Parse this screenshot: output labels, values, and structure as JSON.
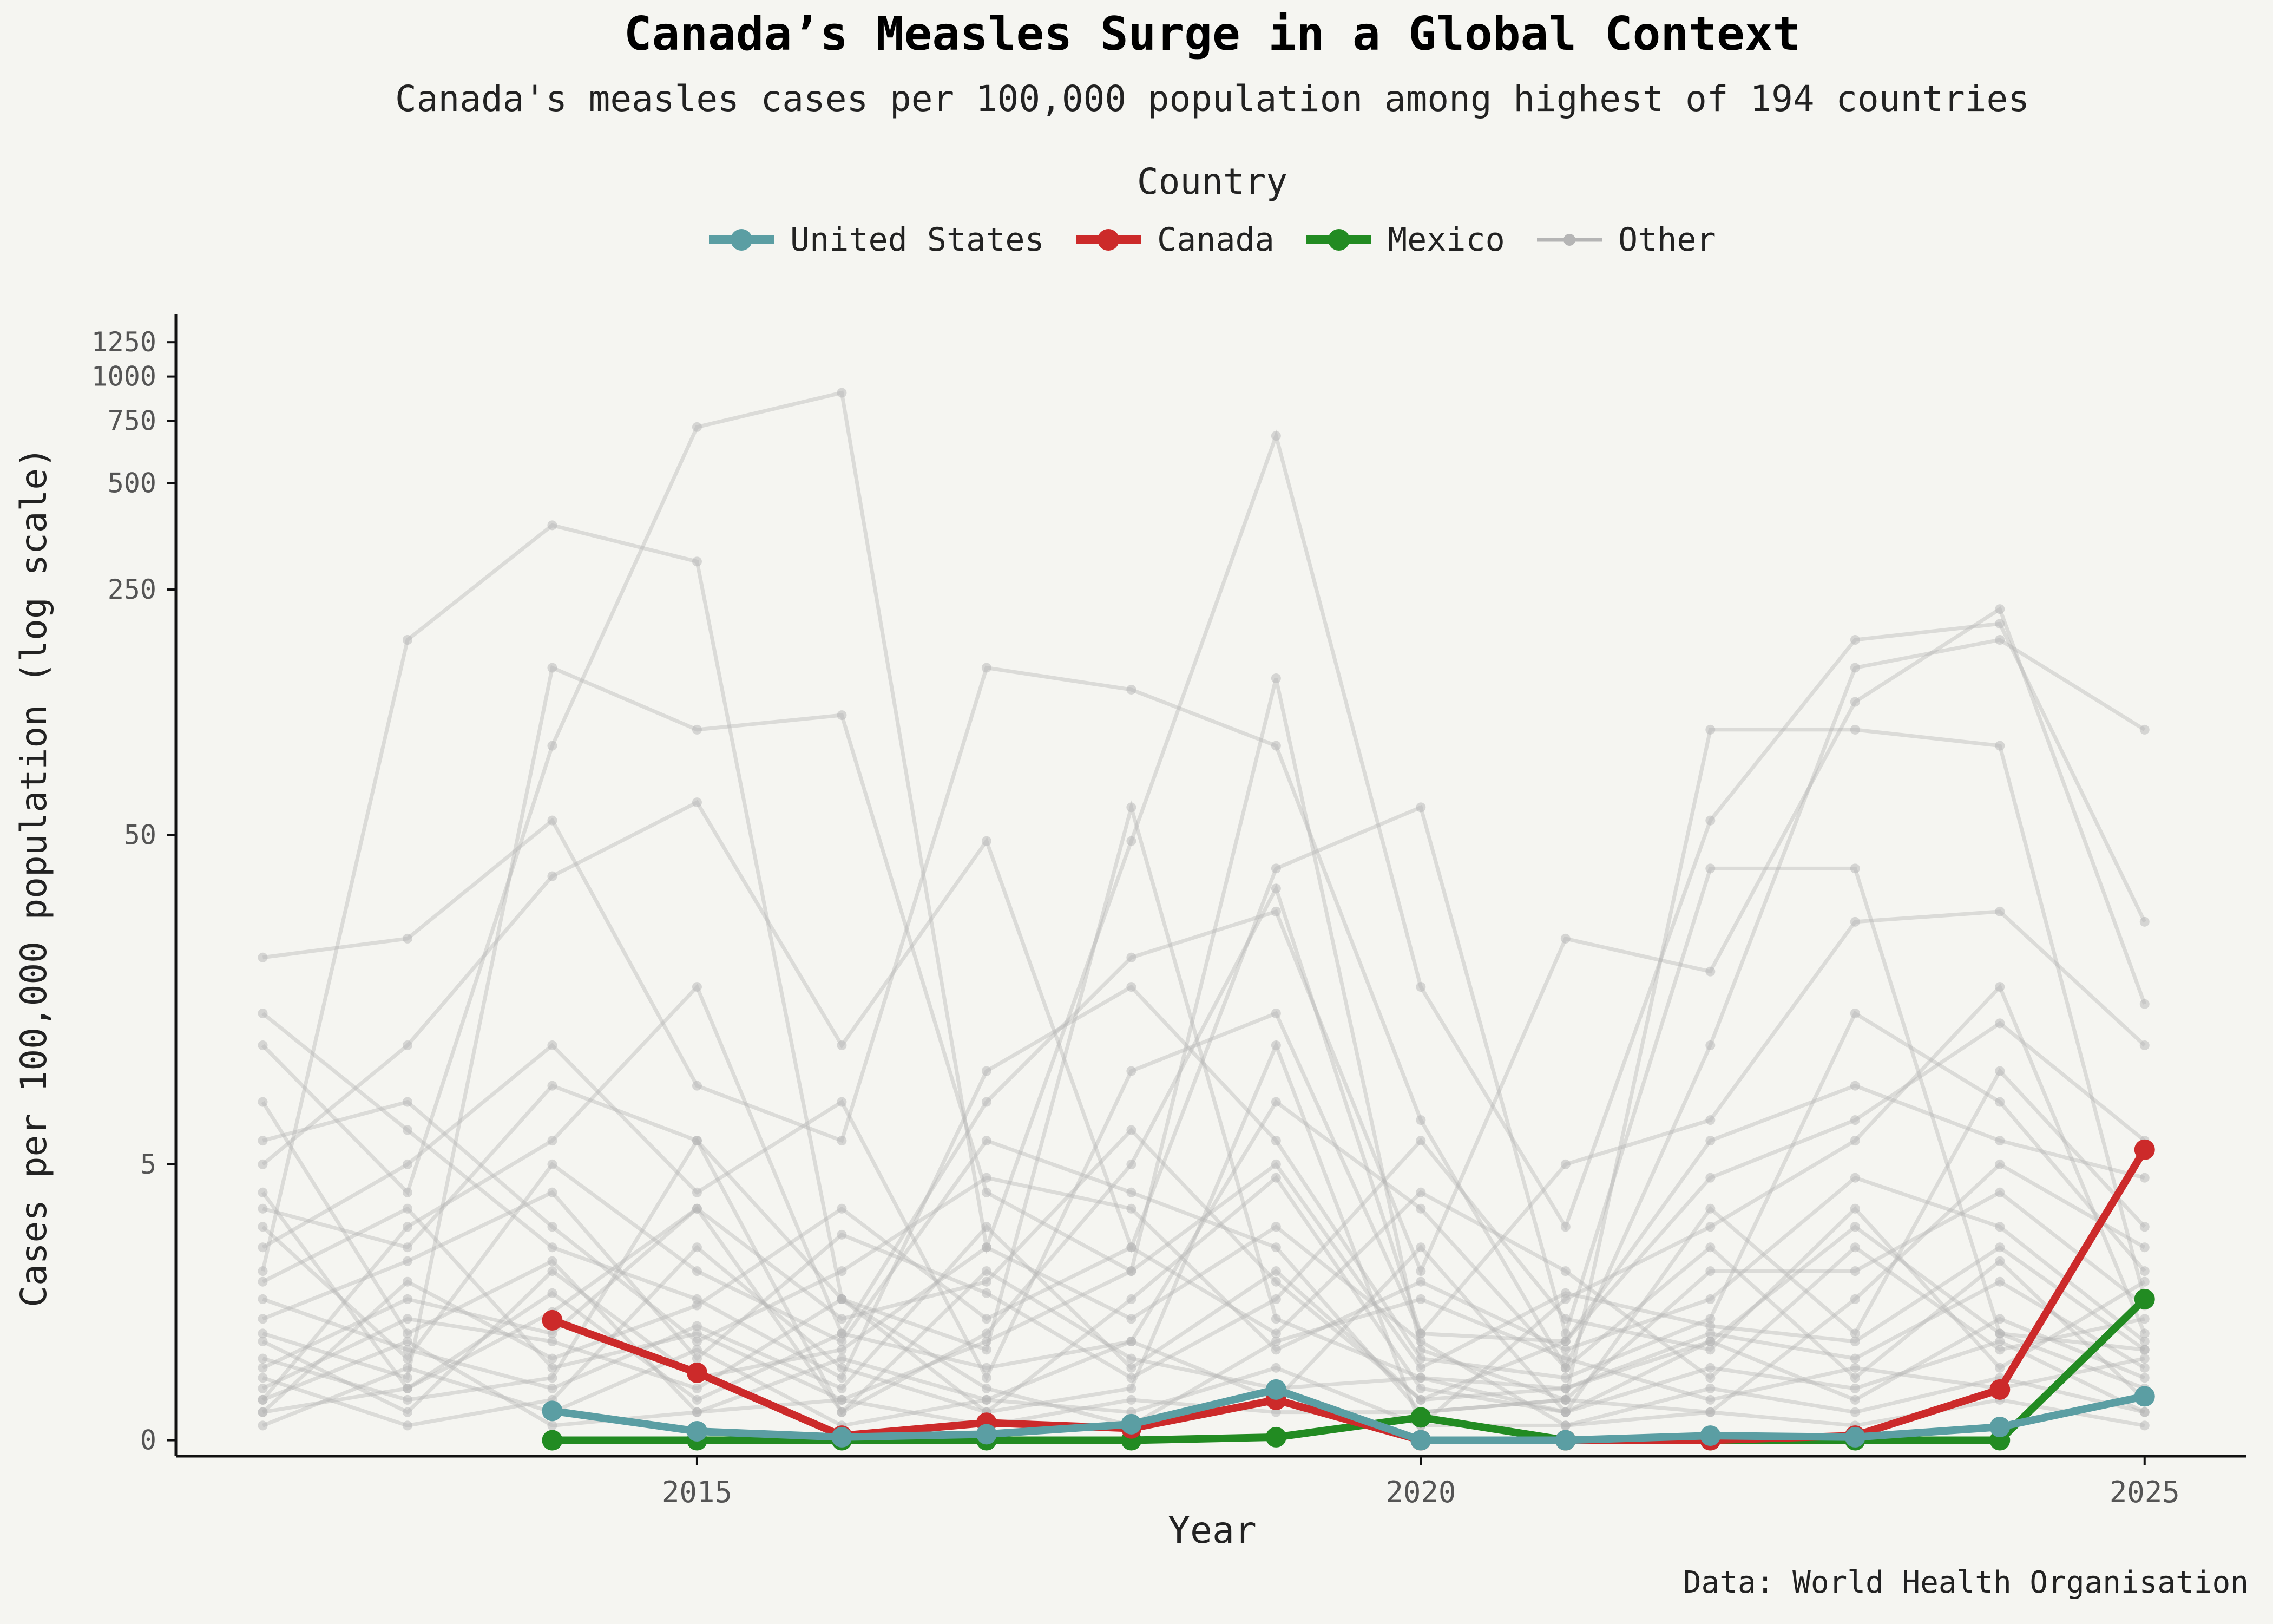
{
  "chart_data": {
    "type": "line",
    "title": "Canada’s Measles Surge in a Global Context",
    "subtitle": "Canada's measles cases per 100,000 population among highest of 194 countries",
    "xlabel": "Year",
    "ylabel": "Cases per 100,000 population (log scale)",
    "caption": "Data: World Health Organisation",
    "legend_title": "Country",
    "legend_position": "top",
    "y_scale": "log1p",
    "xlim": [
      2011.4,
      2025.7
    ],
    "ylim": [
      -0.15,
      1450
    ],
    "x_ticks": [
      2015,
      2020,
      2025
    ],
    "x_tick_labels": [
      "2015",
      "2020",
      "2025"
    ],
    "y_ticks": [
      0,
      5,
      50,
      250,
      500,
      750,
      1000,
      1250
    ],
    "y_tick_labels": [
      "0",
      "5",
      "50",
      "250",
      "500",
      "750",
      "1000",
      "1250"
    ],
    "grid": false,
    "series": [
      {
        "name": "United States",
        "color": "#5b9ea3",
        "x": [
          2014,
          2015,
          2016,
          2017,
          2018,
          2019,
          2020,
          2021,
          2022,
          2023,
          2024,
          2025
        ],
        "values": [
          0.21,
          0.06,
          0.02,
          0.04,
          0.11,
          0.39,
          0.0,
          0.0,
          0.03,
          0.02,
          0.09,
          0.33
        ]
      },
      {
        "name": "Canada",
        "color": "#cc2a2a",
        "x": [
          2014,
          2015,
          2016,
          2017,
          2018,
          2019,
          2020,
          2021,
          2022,
          2023,
          2024,
          2025
        ],
        "values": [
          1.18,
          0.55,
          0.03,
          0.12,
          0.08,
          0.3,
          0.0,
          0.0,
          0.0,
          0.03,
          0.39,
          5.6
        ]
      },
      {
        "name": "Mexico",
        "color": "#228b22",
        "x": [
          2014,
          2015,
          2016,
          2017,
          2018,
          2019,
          2020,
          2021,
          2022,
          2023,
          2024,
          2025
        ],
        "values": [
          0.0,
          0.0,
          0.0,
          0.0,
          0.0,
          0.02,
          0.16,
          0.0,
          0.0,
          0.0,
          0.0,
          1.5
        ]
      },
      {
        "name": "Other",
        "color": "#b5b5b5",
        "x": [
          2012,
          2013,
          2014,
          2015,
          2016,
          2017,
          2018,
          2019,
          2020,
          2021,
          2022,
          2023,
          2024,
          2025
        ],
        "lines": [
          [
            2.0,
            180,
            380,
            300,
            1.5,
            0.8,
            60,
            1.2,
            0.5,
            0.2,
            0.9,
            3.0,
            1.0,
            0.4
          ],
          [
            12,
            4.0,
            90,
            720,
            900,
            2.5,
            48,
            680,
            18,
            3.0,
            55,
            180,
            200,
            28
          ],
          [
            22,
            25,
            55,
            9.0,
            6.0,
            150,
            130,
            90,
            7.0,
            0.6,
            12,
            150,
            180,
            100
          ],
          [
            1.0,
            0.5,
            150,
            100,
            110,
            4.0,
            2.0,
            140,
            0.8,
            0.3,
            100,
            100,
            90,
            1.5
          ],
          [
            5.0,
            12,
            38,
            62,
            12,
            48,
            2.5,
            40,
            60,
            1.0,
            40,
            40,
            1.0,
            0.8
          ],
          [
            0.3,
            3.0,
            6.0,
            18,
            1.0,
            8.0,
            22,
            30,
            2.0,
            25,
            20,
            120,
            220,
            16
          ],
          [
            0.6,
            1.5,
            1.0,
            3.5,
            0.2,
            1.0,
            5.0,
            35,
            1.0,
            5.0,
            7.0,
            28,
            30,
            12
          ],
          [
            3.5,
            2.5,
            9.0,
            6.0,
            1.5,
            0.2,
            0.4,
            12,
            0.1,
            1.5,
            3.0,
            6.0,
            18,
            1.0
          ],
          [
            0.9,
            0.2,
            2.0,
            0.5,
            0.8,
            2.5,
            1.2,
            3.0,
            0.9,
            0.1,
            0.2,
            1.5,
            5.0,
            2.5
          ],
          [
            1.5,
            0.8,
            0.4,
            1.1,
            0.4,
            3.0,
            0.6,
            2.0,
            0.3,
            0.4,
            1.0,
            0.7,
            1.8,
            0.6
          ],
          [
            0.2,
            1.8,
            0.7,
            1.4,
            3.5,
            1.2,
            2.5,
            1.0,
            4.0,
            2.0,
            0.5,
            2.5,
            0.8,
            1.2
          ],
          [
            4.0,
            0.4,
            1.6,
            0.3,
            1.0,
            0.6,
            0.9,
            8.0,
            3.5,
            0.6,
            2.5,
            0.5,
            2.2,
            0.3
          ],
          [
            0.1,
            0.6,
            0.2,
            0.8,
            0.1,
            0.3,
            0.2,
            0.6,
            0.1,
            0.1,
            0.4,
            0.2,
            0.5,
            0.2
          ],
          [
            6.0,
            8.0,
            3.0,
            0.9,
            2.0,
            4.5,
            3.5,
            0.8,
            1.8,
            0.8,
            1.5,
            4.5,
            3.0,
            0.9
          ],
          [
            0.5,
            0.1,
            0.3,
            2.5,
            0.6,
            0.2,
            1.5,
            4.5,
            0.4,
            0.2,
            3.5,
            1.0,
            10,
            3.0
          ],
          [
            1.2,
            2.2,
            4.0,
            0.7,
            2.8,
            1.6,
            0.5,
            1.5,
            6.0,
            1.2,
            0.8,
            3.5,
            0.6,
            1.8
          ],
          [
            0.3,
            0.9,
            0.1,
            0.2,
            0.3,
            0.1,
            0.3,
            0.2,
            0.2,
            0.3,
            0.2,
            0.1,
            0.3,
            0.1
          ],
          [
            2.5,
            5.0,
            12,
            4.0,
            8.0,
            0.5,
            10,
            15,
            1.0,
            0.9,
            6.0,
            9.0,
            6.0,
            4.5
          ],
          [
            0.7,
            0.3,
            0.5,
            6.0,
            0.2,
            2.0,
            0.7,
            0.4,
            0.5,
            0.4,
            0.9,
            0.3,
            1.2,
            0.5
          ],
          [
            15,
            6.5,
            2.5,
            1.5,
            0.5,
            10,
            18,
            6.0,
            0.7,
            0.5,
            1.2,
            15,
            8.0,
            2.0
          ],
          [
            0.4,
            1.2,
            0.9,
            0.4,
            1.5,
            0.4,
            0.1,
            0.9,
            1.5,
            0.7,
            0.3,
            0.6,
            0.4,
            0.7
          ],
          [
            3.0,
            0.7,
            5.0,
            2.0,
            0.9,
            6.0,
            4.0,
            2.5,
            0.2,
            0.3,
            2.0,
            2.0,
            4.0,
            1.4
          ],
          [
            1.8,
            3.5,
            0.6,
            1.0,
            0.3,
            0.9,
            2.0,
            5.0,
            0.6,
            1.6,
            1.1,
            0.9,
            2.5,
            0.8
          ],
          [
            8.0,
            1.0,
            2.2,
            0.2,
            0.7,
            0.3,
            0.9,
            0.3,
            2.5,
            0.2,
            0.6,
            0.4,
            0.9,
            0.2
          ],
          [
            0.2,
            0.4,
            1.3,
            3.5,
            1.2,
            1.8,
            6.5,
            1.8,
            0.3,
            0.9,
            4.5,
            7.0,
            14,
            6.0
          ]
        ]
      }
    ]
  }
}
